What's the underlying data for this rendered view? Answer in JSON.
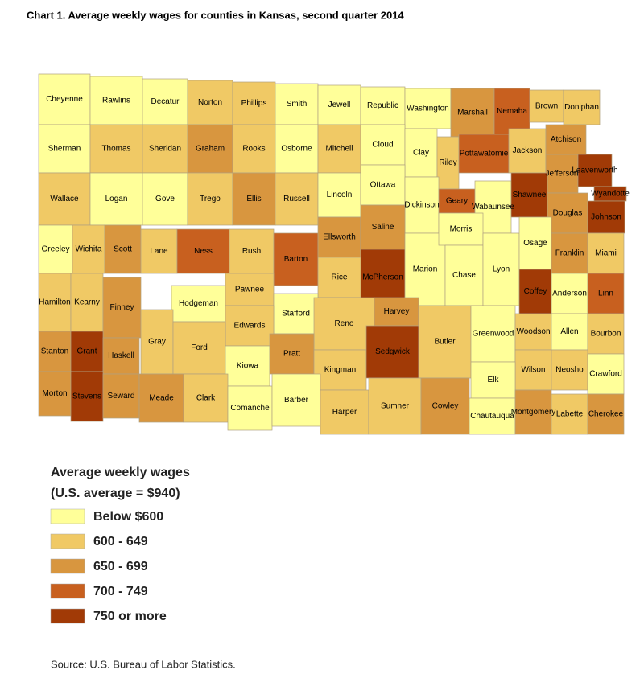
{
  "title": "Chart 1. Average weekly wages for counties in Kansas, second quarter 2014",
  "legend": {
    "title": "Average weekly wages",
    "subtitle": "(U.S. average = $940)",
    "items": [
      {
        "label": "Below $600",
        "color": "#ffff99"
      },
      {
        "label": "600 - 649",
        "color": "#f0c965"
      },
      {
        "label": "650 - 699",
        "color": "#d8963f"
      },
      {
        "label": "700 - 749",
        "color": "#c8601f"
      },
      {
        "label": "750 or more",
        "color": "#a13a06"
      }
    ]
  },
  "counties": [
    {
      "name": "Cheyenne",
      "bin": 0
    },
    {
      "name": "Rawlins",
      "bin": 0
    },
    {
      "name": "Decatur",
      "bin": 0
    },
    {
      "name": "Norton",
      "bin": 1
    },
    {
      "name": "Phillips",
      "bin": 1
    },
    {
      "name": "Smith",
      "bin": 0
    },
    {
      "name": "Jewell",
      "bin": 0
    },
    {
      "name": "Republic",
      "bin": 0
    },
    {
      "name": "Washington",
      "bin": 0
    },
    {
      "name": "Marshall",
      "bin": 2
    },
    {
      "name": "Nemaha",
      "bin": 3
    },
    {
      "name": "Brown",
      "bin": 1
    },
    {
      "name": "Doniphan",
      "bin": 1
    },
    {
      "name": "Sherman",
      "bin": 0
    },
    {
      "name": "Thomas",
      "bin": 1
    },
    {
      "name": "Sheridan",
      "bin": 1
    },
    {
      "name": "Graham",
      "bin": 2
    },
    {
      "name": "Rooks",
      "bin": 1
    },
    {
      "name": "Osborne",
      "bin": 0
    },
    {
      "name": "Mitchell",
      "bin": 1
    },
    {
      "name": "Cloud",
      "bin": 0
    },
    {
      "name": "Clay",
      "bin": 0
    },
    {
      "name": "Riley",
      "bin": 1
    },
    {
      "name": "Pottawatomie",
      "bin": 3
    },
    {
      "name": "Jackson",
      "bin": 1
    },
    {
      "name": "Atchison",
      "bin": 2
    },
    {
      "name": "Jefferson",
      "bin": 2
    },
    {
      "name": "Leavenworth",
      "bin": 4
    },
    {
      "name": "Wyandotte",
      "bin": 4
    },
    {
      "name": "Wallace",
      "bin": 1
    },
    {
      "name": "Logan",
      "bin": 0
    },
    {
      "name": "Gove",
      "bin": 0
    },
    {
      "name": "Trego",
      "bin": 1
    },
    {
      "name": "Ellis",
      "bin": 2
    },
    {
      "name": "Russell",
      "bin": 1
    },
    {
      "name": "Lincoln",
      "bin": 0
    },
    {
      "name": "Ottawa",
      "bin": 0
    },
    {
      "name": "Dickinson",
      "bin": 0
    },
    {
      "name": "Geary",
      "bin": 3
    },
    {
      "name": "Wabaunsee",
      "bin": 0
    },
    {
      "name": "Shawnee",
      "bin": 4
    },
    {
      "name": "Douglas",
      "bin": 2
    },
    {
      "name": "Johnson",
      "bin": 4
    },
    {
      "name": "Greeley",
      "bin": 0
    },
    {
      "name": "Wichita",
      "bin": 1
    },
    {
      "name": "Scott",
      "bin": 2
    },
    {
      "name": "Lane",
      "bin": 1
    },
    {
      "name": "Ness",
      "bin": 3
    },
    {
      "name": "Rush",
      "bin": 1
    },
    {
      "name": "Barton",
      "bin": 3
    },
    {
      "name": "Ellsworth",
      "bin": 2
    },
    {
      "name": "Saline",
      "bin": 2
    },
    {
      "name": "McPherson",
      "bin": 4
    },
    {
      "name": "Marion",
      "bin": 0
    },
    {
      "name": "Morris",
      "bin": 0
    },
    {
      "name": "Chase",
      "bin": 0
    },
    {
      "name": "Lyon",
      "bin": 0
    },
    {
      "name": "Osage",
      "bin": 0
    },
    {
      "name": "Franklin",
      "bin": 2
    },
    {
      "name": "Miami",
      "bin": 1
    },
    {
      "name": "Hamilton",
      "bin": 1
    },
    {
      "name": "Kearny",
      "bin": 1
    },
    {
      "name": "Finney",
      "bin": 2
    },
    {
      "name": "Hodgeman",
      "bin": 0
    },
    {
      "name": "Pawnee",
      "bin": 1
    },
    {
      "name": "Rice",
      "bin": 1
    },
    {
      "name": "Stafford",
      "bin": 0
    },
    {
      "name": "Edwards",
      "bin": 1
    },
    {
      "name": "Reno",
      "bin": 1
    },
    {
      "name": "Harvey",
      "bin": 2
    },
    {
      "name": "Anderson",
      "bin": 0
    },
    {
      "name": "Linn",
      "bin": 3
    },
    {
      "name": "Coffey",
      "bin": 4
    },
    {
      "name": "Stanton",
      "bin": 2
    },
    {
      "name": "Grant",
      "bin": 4
    },
    {
      "name": "Haskell",
      "bin": 2
    },
    {
      "name": "Gray",
      "bin": 1
    },
    {
      "name": "Ford",
      "bin": 1
    },
    {
      "name": "Kiowa",
      "bin": 0
    },
    {
      "name": "Pratt",
      "bin": 2
    },
    {
      "name": "Kingman",
      "bin": 1
    },
    {
      "name": "Sedgwick",
      "bin": 4
    },
    {
      "name": "Butler",
      "bin": 1
    },
    {
      "name": "Greenwood",
      "bin": 0
    },
    {
      "name": "Woodson",
      "bin": 1
    },
    {
      "name": "Allen",
      "bin": 0
    },
    {
      "name": "Bourbon",
      "bin": 1
    },
    {
      "name": "Wilson",
      "bin": 1
    },
    {
      "name": "Neosho",
      "bin": 1
    },
    {
      "name": "Crawford",
      "bin": 0
    },
    {
      "name": "Elk",
      "bin": 0
    },
    {
      "name": "Morton",
      "bin": 2
    },
    {
      "name": "Stevens",
      "bin": 4
    },
    {
      "name": "Seward",
      "bin": 2
    },
    {
      "name": "Meade",
      "bin": 2
    },
    {
      "name": "Clark",
      "bin": 1
    },
    {
      "name": "Comanche",
      "bin": 0
    },
    {
      "name": "Barber",
      "bin": 0
    },
    {
      "name": "Harper",
      "bin": 1
    },
    {
      "name": "Sumner",
      "bin": 1
    },
    {
      "name": "Cowley",
      "bin": 2
    },
    {
      "name": "Chautauqua",
      "bin": 0
    },
    {
      "name": "Montgomery",
      "bin": 2
    },
    {
      "name": "Labette",
      "bin": 1
    },
    {
      "name": "Cherokee",
      "bin": 2
    }
  ],
  "source": "Source: U.S. Bureau of Labor Statistics."
}
